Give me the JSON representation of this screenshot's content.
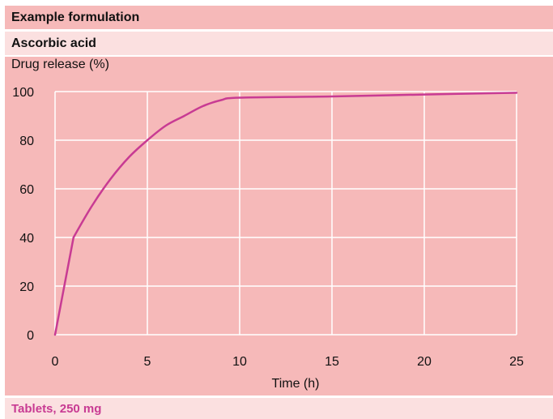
{
  "header": {
    "title": "Example formulation",
    "subtitle": "Ascorbic acid"
  },
  "footer": {
    "text": "Tablets, 250 mg"
  },
  "colors": {
    "band_dark": "#f6b9b9",
    "band_light": "#fbe0e0",
    "curve": "#c83b93",
    "grid": "#ffffff"
  },
  "chart_data": {
    "type": "line",
    "ylabel": "Drug release (%)",
    "xlabel": "Time (h)",
    "xlim": [
      0,
      25
    ],
    "ylim": [
      0,
      100
    ],
    "x_ticks": [
      0,
      5,
      10,
      15,
      20,
      25
    ],
    "y_ticks": [
      0,
      20,
      40,
      60,
      80,
      100
    ],
    "grid": true,
    "series": [
      {
        "x": [
          0,
          1,
          2,
          3,
          4,
          5,
          6,
          7,
          8,
          9,
          10,
          15,
          20,
          25
        ],
        "y": [
          0,
          40,
          53,
          64,
          73,
          80,
          86,
          90,
          94,
          96.5,
          97.5,
          98,
          98.8,
          99.5
        ]
      }
    ]
  }
}
